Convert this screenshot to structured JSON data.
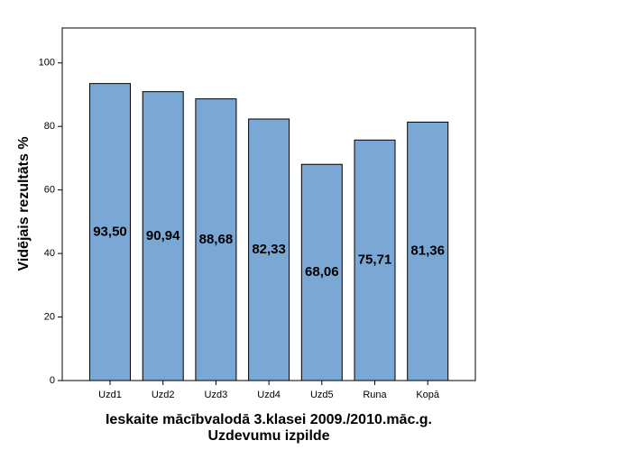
{
  "chart_data": {
    "type": "bar",
    "title": "Ieskaite mācībvalodā 3.klasei 2009./2010.māc.g.",
    "subtitle": "Uzdevumu izpilde",
    "y_label": "Vidējais rezultāts %",
    "categories": [
      "Uzd1",
      "Uzd2",
      "Uzd3",
      "Uzd4",
      "Uzd5",
      "Runa",
      "Kopā"
    ],
    "values": [
      93.5,
      90.94,
      88.68,
      82.33,
      68.06,
      75.71,
      81.36
    ],
    "value_labels": [
      "93,50",
      "90,94",
      "88,68",
      "82,33",
      "68,06",
      "75,71",
      "81,36"
    ],
    "color": "#7ba7d5",
    "ylim": [
      0,
      111
    ],
    "yticks": [
      0,
      20,
      40,
      60,
      80,
      100
    ]
  }
}
